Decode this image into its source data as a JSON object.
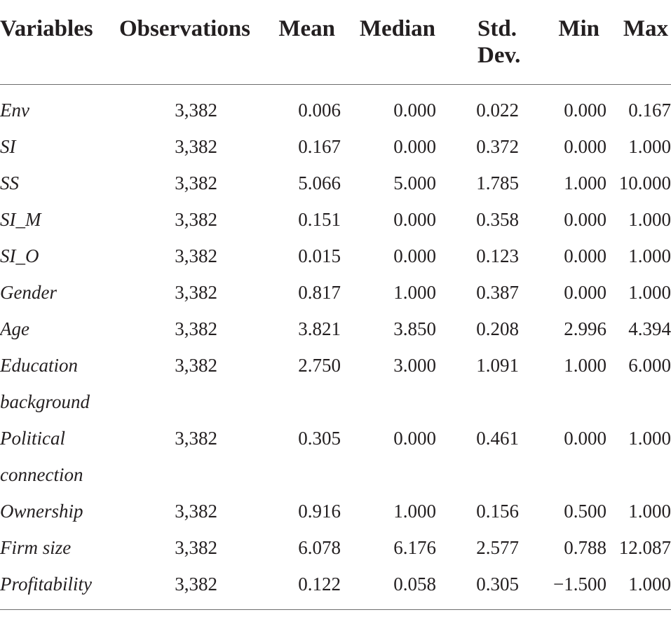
{
  "table": {
    "headers": [
      "Variables",
      "Observations",
      "Mean",
      "Median",
      "Std. Dev.",
      "Min",
      "Max"
    ],
    "header_std_line1": "Std.",
    "header_std_line2": "Dev.",
    "rows": [
      {
        "var_line1": "Env",
        "var_line2": "",
        "obs": "3,382",
        "mean": "0.006",
        "median": "0.000",
        "std": "0.022",
        "min": "0.000",
        "max": "0.167"
      },
      {
        "var_line1": "SI",
        "var_line2": "",
        "obs": "3,382",
        "mean": "0.167",
        "median": "0.000",
        "std": "0.372",
        "min": "0.000",
        "max": "1.000"
      },
      {
        "var_line1": "SS",
        "var_line2": "",
        "obs": "3,382",
        "mean": "5.066",
        "median": "5.000",
        "std": "1.785",
        "min": "1.000",
        "max": "10.000"
      },
      {
        "var_line1": "SI_M",
        "var_line2": "",
        "obs": "3,382",
        "mean": "0.151",
        "median": "0.000",
        "std": "0.358",
        "min": "0.000",
        "max": "1.000"
      },
      {
        "var_line1": "SI_O",
        "var_line2": "",
        "obs": "3,382",
        "mean": "0.015",
        "median": "0.000",
        "std": "0.123",
        "min": "0.000",
        "max": "1.000"
      },
      {
        "var_line1": "Gender",
        "var_line2": "",
        "obs": "3,382",
        "mean": "0.817",
        "median": "1.000",
        "std": "0.387",
        "min": "0.000",
        "max": "1.000"
      },
      {
        "var_line1": "Age",
        "var_line2": "",
        "obs": "3,382",
        "mean": "3.821",
        "median": "3.850",
        "std": "0.208",
        "min": "2.996",
        "max": "4.394"
      },
      {
        "var_line1": "Education",
        "var_line2": "background",
        "obs": "3,382",
        "mean": "2.750",
        "median": "3.000",
        "std": "1.091",
        "min": "1.000",
        "max": "6.000"
      },
      {
        "var_line1": "Political",
        "var_line2": "connection",
        "obs": "3,382",
        "mean": "0.305",
        "median": "0.000",
        "std": "0.461",
        "min": "0.000",
        "max": "1.000"
      },
      {
        "var_line1": "Ownership",
        "var_line2": "",
        "obs": "3,382",
        "mean": "0.916",
        "median": "1.000",
        "std": "0.156",
        "min": "0.500",
        "max": "1.000"
      },
      {
        "var_line1": "Firm size",
        "var_line2": "",
        "obs": "3,382",
        "mean": "6.078",
        "median": "6.176",
        "std": "2.577",
        "min": "0.788",
        "max": "12.087"
      },
      {
        "var_line1": "Profitability",
        "var_line2": "",
        "obs": "3,382",
        "mean": "0.122",
        "median": "0.058",
        "std": "0.305",
        "min": "−1.500",
        "max": "1.000"
      }
    ]
  }
}
